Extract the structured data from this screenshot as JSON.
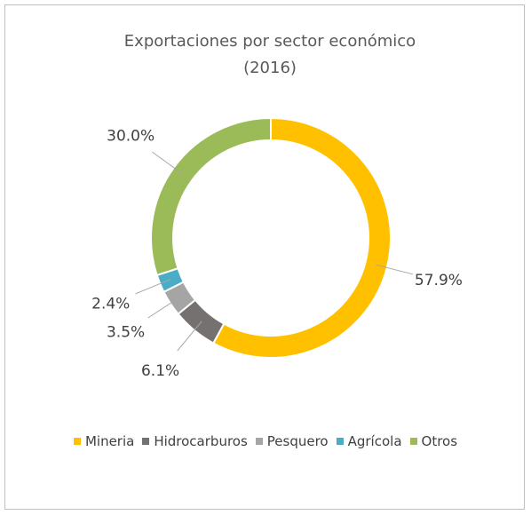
{
  "chart_data": {
    "type": "donut",
    "title": "Exportaciones por sector económico (2016)",
    "categories": [
      "Mineria",
      "Hidrocarburos",
      "Pesquero",
      "Agrícola",
      "Otros"
    ],
    "values": [
      57.9,
      6.1,
      3.5,
      2.4,
      30.0
    ],
    "value_labels": [
      "57.9%",
      "6.1%",
      "3.5%",
      "2.4%",
      "30.0%"
    ],
    "colors": [
      "#FFC000",
      "#767171",
      "#A5A5A5",
      "#4BACC6",
      "#9BBB59"
    ],
    "legend": "bottom"
  }
}
